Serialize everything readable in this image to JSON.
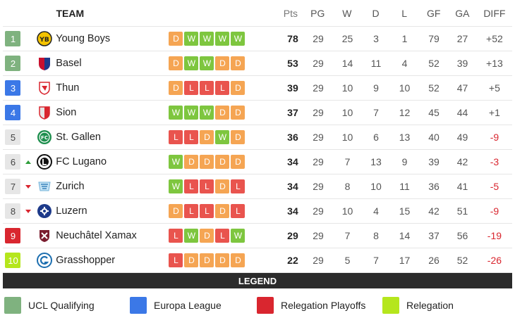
{
  "header": {
    "team": "TEAM",
    "pts": "Pts",
    "pg": "PG",
    "w": "W",
    "d": "D",
    "l": "L",
    "gf": "GF",
    "ga": "GA",
    "diff": "DIFF"
  },
  "rows": [
    {
      "pos": "1",
      "trend": "",
      "team": "Young Boys",
      "logo_icon": "young-boys-logo-icon",
      "form": [
        "D",
        "W",
        "W",
        "W",
        "W"
      ],
      "pts": "78",
      "pg": "29",
      "w": "25",
      "d": "3",
      "l": "1",
      "gf": "79",
      "ga": "27",
      "diff": "+52",
      "pos_color": "#7fb27f"
    },
    {
      "pos": "2",
      "trend": "",
      "team": "Basel",
      "logo_icon": "basel-logo-icon",
      "form": [
        "D",
        "W",
        "W",
        "D",
        "D"
      ],
      "pts": "53",
      "pg": "29",
      "w": "14",
      "d": "11",
      "l": "4",
      "gf": "52",
      "ga": "39",
      "diff": "+13",
      "pos_color": "#7fb27f"
    },
    {
      "pos": "3",
      "trend": "",
      "team": "Thun",
      "logo_icon": "thun-logo-icon",
      "form": [
        "D",
        "L",
        "L",
        "L",
        "D"
      ],
      "pts": "39",
      "pg": "29",
      "w": "10",
      "d": "9",
      "l": "10",
      "gf": "52",
      "ga": "47",
      "diff": "+5",
      "pos_color": "#3b78e7"
    },
    {
      "pos": "4",
      "trend": "",
      "team": "Sion",
      "logo_icon": "sion-logo-icon",
      "form": [
        "W",
        "W",
        "W",
        "D",
        "D"
      ],
      "pts": "37",
      "pg": "29",
      "w": "10",
      "d": "7",
      "l": "12",
      "gf": "45",
      "ga": "44",
      "diff": "+1",
      "pos_color": "#3b78e7"
    },
    {
      "pos": "5",
      "trend": "",
      "team": "St. Gallen",
      "logo_icon": "st-gallen-logo-icon",
      "form": [
        "L",
        "L",
        "D",
        "W",
        "D"
      ],
      "pts": "36",
      "pg": "29",
      "w": "10",
      "d": "6",
      "l": "13",
      "gf": "40",
      "ga": "49",
      "diff": "-9",
      "pos_color": "#e6e6e6"
    },
    {
      "pos": "6",
      "trend": "up",
      "team": "FC Lugano",
      "logo_icon": "fc-lugano-logo-icon",
      "form": [
        "W",
        "D",
        "D",
        "D",
        "D"
      ],
      "pts": "34",
      "pg": "29",
      "w": "7",
      "d": "13",
      "l": "9",
      "gf": "39",
      "ga": "42",
      "diff": "-3",
      "pos_color": "#e6e6e6"
    },
    {
      "pos": "7",
      "trend": "down",
      "team": "Zurich",
      "logo_icon": "zurich-logo-icon",
      "form": [
        "W",
        "L",
        "L",
        "D",
        "L"
      ],
      "pts": "34",
      "pg": "29",
      "w": "8",
      "d": "10",
      "l": "11",
      "gf": "36",
      "ga": "41",
      "diff": "-5",
      "pos_color": "#e6e6e6"
    },
    {
      "pos": "8",
      "trend": "down",
      "team": "Luzern",
      "logo_icon": "luzern-logo-icon",
      "form": [
        "D",
        "L",
        "L",
        "D",
        "L"
      ],
      "pts": "34",
      "pg": "29",
      "w": "10",
      "d": "4",
      "l": "15",
      "gf": "42",
      "ga": "51",
      "diff": "-9",
      "pos_color": "#e6e6e6"
    },
    {
      "pos": "9",
      "trend": "",
      "team": "Neuchâtel Xamax",
      "logo_icon": "neuchatel-xamax-logo-icon",
      "form": [
        "L",
        "W",
        "D",
        "L",
        "W"
      ],
      "pts": "29",
      "pg": "29",
      "w": "7",
      "d": "8",
      "l": "14",
      "gf": "37",
      "ga": "56",
      "diff": "-19",
      "pos_color": "#d9262f"
    },
    {
      "pos": "10",
      "trend": "",
      "team": "Grasshopper",
      "logo_icon": "grasshopper-logo-icon",
      "form": [
        "L",
        "D",
        "D",
        "D",
        "D"
      ],
      "pts": "22",
      "pg": "29",
      "w": "5",
      "d": "7",
      "l": "17",
      "gf": "26",
      "ga": "52",
      "diff": "-26",
      "pos_color": "#b5e61d"
    }
  ],
  "legend": {
    "title": "LEGEND",
    "items": [
      {
        "label": "UCL Qualifying",
        "color": "#7fb27f"
      },
      {
        "label": "Europa League",
        "color": "#3b78e7"
      },
      {
        "label": "Relegation Playoffs",
        "color": "#d9262f"
      },
      {
        "label": "Relegation",
        "color": "#b5e61d"
      }
    ]
  }
}
